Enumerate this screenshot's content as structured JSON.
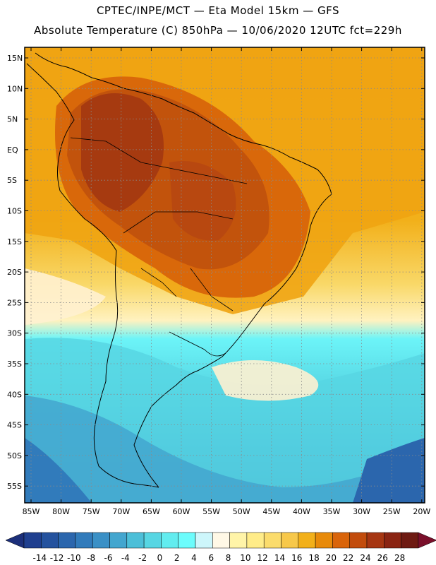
{
  "header": {
    "line1": "CPTEC/INPE/MCT —  Eta Model 15km — GFS",
    "line2": "Absolute Temperature (C) 850hPa — 10/06/2020 12UTC fct=229h"
  },
  "axes": {
    "lat_labels": [
      "15N",
      "10N",
      "5N",
      "EQ",
      "5S",
      "10S",
      "15S",
      "20S",
      "25S",
      "30S",
      "35S",
      "40S",
      "45S",
      "50S",
      "55S"
    ],
    "lon_labels": [
      "85W",
      "80W",
      "75W",
      "70W",
      "65W",
      "60W",
      "55W",
      "50W",
      "45W",
      "40W",
      "35W",
      "30W",
      "25W",
      "20W"
    ]
  },
  "legend": {
    "labels": [
      "-14",
      "-12",
      "-10",
      "-8",
      "-6",
      "-4",
      "-2",
      "0",
      "2",
      "4",
      "6",
      "8",
      "10",
      "12",
      "14",
      "16",
      "18",
      "20",
      "22",
      "24",
      "26",
      "28"
    ],
    "colors": [
      "#1f3f8f",
      "#24529e",
      "#2b66ad",
      "#317bbb",
      "#3a90c6",
      "#43a6cf",
      "#4cbfd8",
      "#57d6e3",
      "#62ecef",
      "#6cfcfc",
      "#cdf6fb",
      "#fff8e6",
      "#fff4a8",
      "#ffec88",
      "#fbdc6c",
      "#f7c84a",
      "#f2b01a",
      "#e88a0a",
      "#d9640a",
      "#c24c0c",
      "#a63612",
      "#8a2412",
      "#6e1a12"
    ],
    "low_color": "#1c2f7a",
    "high_color": "#7a0f2a"
  }
}
